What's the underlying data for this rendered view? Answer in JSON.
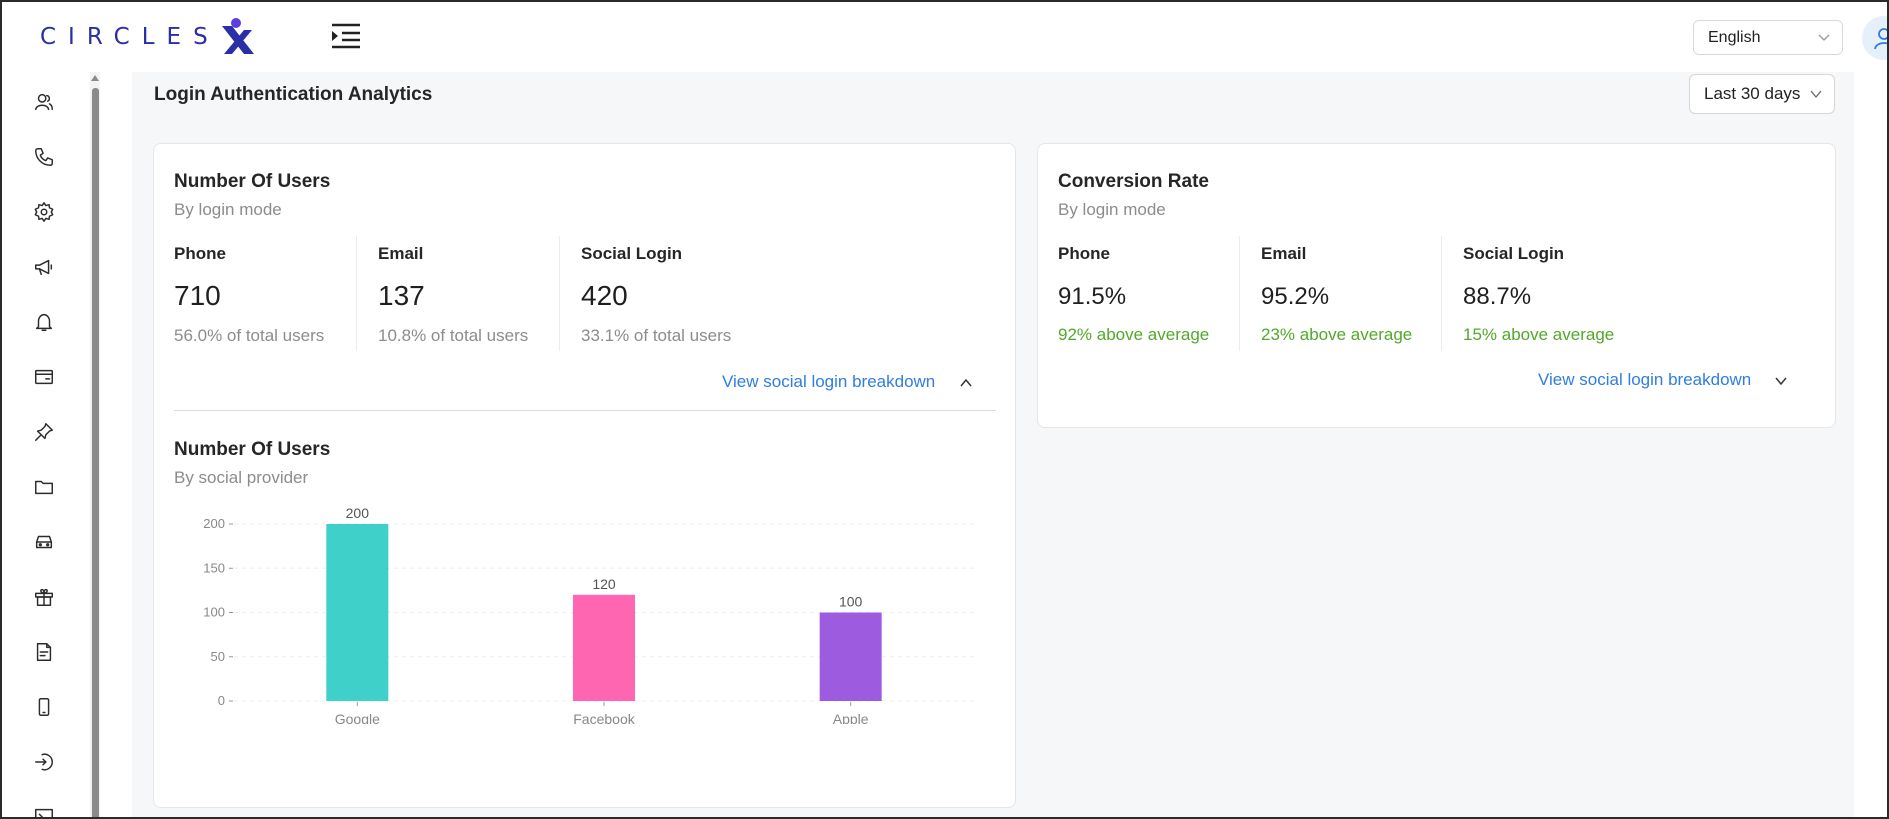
{
  "app": {
    "logo_text": "CIRCLES",
    "language": "English"
  },
  "sidebar": {
    "items": [
      {
        "icon": "users-icon"
      },
      {
        "icon": "phone-icon"
      },
      {
        "icon": "gear-icon"
      },
      {
        "icon": "megaphone-icon"
      },
      {
        "icon": "bell-icon"
      },
      {
        "icon": "card-icon"
      },
      {
        "icon": "pin-icon"
      },
      {
        "icon": "folder-icon"
      },
      {
        "icon": "car-icon"
      },
      {
        "icon": "gift-icon"
      },
      {
        "icon": "document-icon"
      },
      {
        "icon": "mobile-icon"
      },
      {
        "icon": "login-icon"
      },
      {
        "icon": "terminal-icon"
      }
    ]
  },
  "page": {
    "title": "Login Authentication Analytics",
    "range": "Last 30 days"
  },
  "users_card": {
    "title": "Number Of Users",
    "subtitle": "By login mode",
    "stats": [
      {
        "label": "Phone",
        "value": "710",
        "note": "56.0% of total users"
      },
      {
        "label": "Email",
        "value": "137",
        "note": "10.8% of total users"
      },
      {
        "label": "Social Login",
        "value": "420",
        "note": "33.1% of total users"
      }
    ],
    "link": "View social login breakdown",
    "chart_title": "Number Of Users",
    "chart_subtitle": "By social provider"
  },
  "conversion_card": {
    "title": "Conversion Rate",
    "subtitle": "By login mode",
    "stats": [
      {
        "label": "Phone",
        "value": "91.5%",
        "note": "92% above average"
      },
      {
        "label": "Email",
        "value": "95.2%",
        "note": "23% above average"
      },
      {
        "label": "Social Login",
        "value": "88.7%",
        "note": "15% above average"
      }
    ],
    "link": "View social login breakdown"
  },
  "colors": {
    "brand": "#2a2fa8",
    "link": "#2f7de1",
    "positive": "#52a82a"
  },
  "chart_data": {
    "type": "bar",
    "categories": [
      "Google",
      "Facebook",
      "Apple"
    ],
    "values": [
      200,
      120,
      100
    ],
    "colors": [
      "#3fd1c9",
      "#ff66b2",
      "#9d5ce0"
    ],
    "yticks": [
      0,
      50,
      100,
      150,
      200
    ],
    "ylim": [
      0,
      200
    ],
    "grid": true,
    "data_labels": true
  }
}
